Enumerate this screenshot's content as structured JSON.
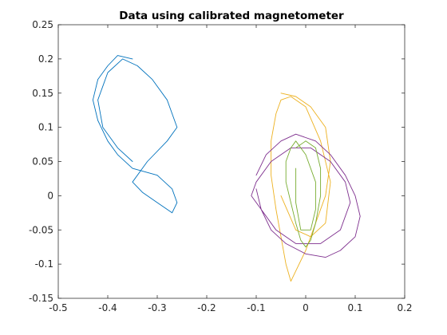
{
  "chart_data": {
    "type": "line",
    "title": "Data using calibrated magnetometer",
    "xlabel": "",
    "ylabel": "",
    "xlim": [
      -0.5,
      0.2
    ],
    "ylim": [
      -0.15,
      0.25
    ],
    "x_ticks": [
      -0.5,
      -0.4,
      -0.3,
      -0.2,
      -0.1,
      0,
      0.1,
      0.2
    ],
    "x_tick_labels": [
      "-0.5",
      "-0.4",
      "-0.3",
      "-0.2",
      "-0.1",
      "0",
      "0.1",
      "0.2"
    ],
    "y_ticks": [
      -0.15,
      -0.1,
      -0.05,
      0,
      0.05,
      0.1,
      0.15,
      0.2,
      0.25
    ],
    "y_tick_labels": [
      "-0.15",
      "-0.1",
      "-0.05",
      "0",
      "0.05",
      "0.1",
      "0.15",
      "0.2",
      "0.25"
    ],
    "grid": false,
    "series": [
      {
        "color": "#0072BD",
        "x": [
          -0.35,
          -0.38,
          -0.4,
          -0.42,
          -0.43,
          -0.42,
          -0.4,
          -0.38,
          -0.35,
          -0.3,
          -0.27,
          -0.26,
          -0.27,
          -0.3,
          -0.33,
          -0.35,
          -0.32,
          -0.28,
          -0.26,
          -0.28,
          -0.31,
          -0.34,
          -0.37,
          -0.4,
          -0.42,
          -0.41,
          -0.38,
          -0.35
        ],
        "y": [
          0.2,
          0.205,
          0.19,
          0.17,
          0.14,
          0.11,
          0.08,
          0.06,
          0.04,
          0.03,
          0.01,
          -0.01,
          -0.025,
          -0.01,
          0.005,
          0.02,
          0.05,
          0.08,
          0.1,
          0.14,
          0.17,
          0.19,
          0.2,
          0.18,
          0.14,
          0.1,
          0.07,
          0.05
        ]
      },
      {
        "color": "#EDB120",
        "x": [
          -0.05,
          -0.02,
          0.01,
          0.04,
          0.05,
          0.04,
          0.02,
          0.0,
          -0.02,
          -0.03,
          -0.04,
          -0.05,
          -0.06,
          -0.07,
          -0.07,
          -0.06,
          -0.05,
          -0.03,
          0.0,
          0.03,
          0.05,
          0.04,
          0.01,
          -0.02,
          -0.05
        ],
        "y": [
          0.15,
          0.145,
          0.13,
          0.1,
          0.05,
          0.0,
          -0.04,
          -0.08,
          -0.11,
          -0.125,
          -0.1,
          -0.06,
          -0.02,
          0.03,
          0.08,
          0.12,
          0.14,
          0.145,
          0.13,
          0.08,
          0.02,
          -0.04,
          -0.06,
          -0.05,
          0.0
        ]
      },
      {
        "color": "#7E2F8E",
        "x": [
          -0.1,
          -0.08,
          -0.05,
          -0.02,
          0.02,
          0.05,
          0.08,
          0.1,
          0.11,
          0.1,
          0.07,
          0.04,
          0.0,
          -0.04,
          -0.07,
          -0.09,
          -0.11,
          -0.1,
          -0.07,
          -0.03,
          0.01,
          0.05,
          0.08,
          0.09,
          0.07,
          0.03,
          -0.02,
          -0.06,
          -0.09,
          -0.1
        ],
        "y": [
          0.03,
          0.06,
          0.08,
          0.09,
          0.08,
          0.06,
          0.03,
          0.0,
          -0.03,
          -0.06,
          -0.08,
          -0.09,
          -0.085,
          -0.07,
          -0.05,
          -0.02,
          0.0,
          0.02,
          0.05,
          0.07,
          0.07,
          0.05,
          0.02,
          -0.01,
          -0.05,
          -0.07,
          -0.07,
          -0.05,
          -0.02,
          0.01
        ]
      },
      {
        "color": "#77AC30",
        "x": [
          -0.02,
          0.0,
          0.02,
          0.03,
          0.03,
          0.02,
          0.01,
          0.0,
          -0.01,
          -0.02,
          -0.03,
          -0.04,
          -0.04,
          -0.03,
          -0.02,
          0.0,
          0.02,
          0.02,
          0.01,
          -0.01,
          -0.02,
          -0.02
        ],
        "y": [
          0.07,
          0.08,
          0.07,
          0.04,
          0.0,
          -0.04,
          -0.065,
          -0.075,
          -0.065,
          -0.04,
          -0.01,
          0.02,
          0.05,
          0.07,
          0.08,
          0.06,
          0.02,
          -0.02,
          -0.05,
          -0.05,
          -0.01,
          0.04
        ]
      }
    ]
  }
}
